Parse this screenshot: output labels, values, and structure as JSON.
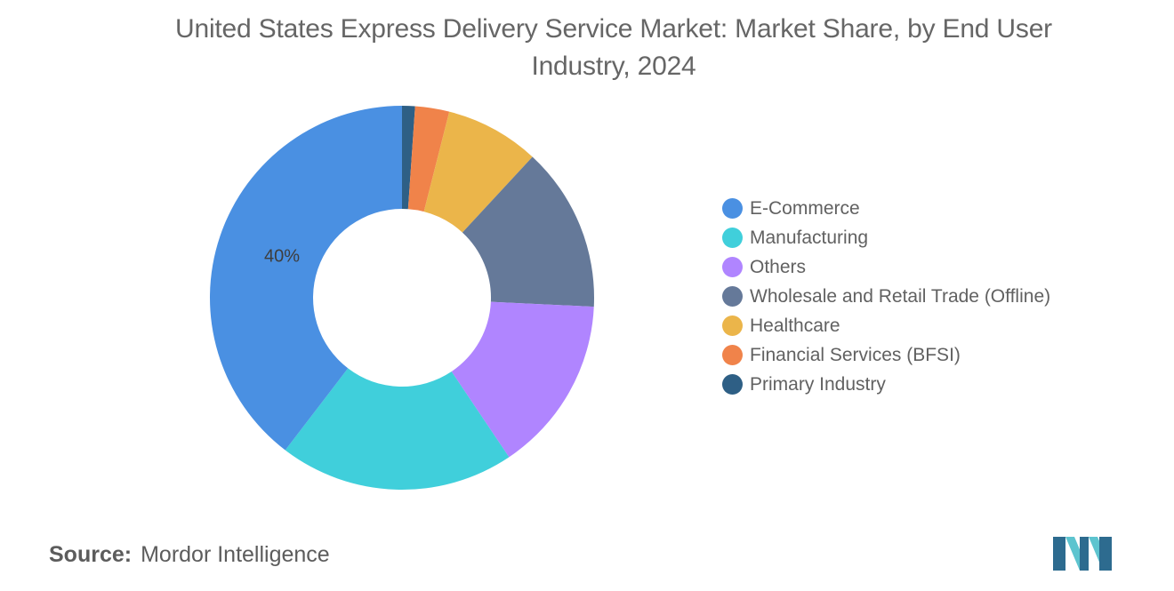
{
  "chart_data": {
    "type": "pie",
    "title": "United States Express Delivery Service Market: Market Share, by End User Industry, 2024",
    "donut": true,
    "legend_position": "right",
    "categories": [
      "E-Commerce",
      "Manufacturing",
      "Others",
      "Wholesale and Retail Trade (Offline)",
      "Healthcare",
      "Financial Services (BFSI)",
      "Primary Industry"
    ],
    "values": [
      40,
      20,
      15,
      14,
      8,
      2.9,
      1.1
    ],
    "colors": [
      "#4a90e2",
      "#40cfdb",
      "#b085ff",
      "#657999",
      "#ebb54a",
      "#f0834a",
      "#2e5f85"
    ],
    "data_labels": [
      "40%",
      "",
      "",
      "",
      "",
      "",
      ""
    ],
    "draw_order": [
      6,
      5,
      4,
      3,
      2,
      1,
      0
    ]
  },
  "source": {
    "label": "Source:",
    "text": "Mordor Intelligence"
  },
  "logo": {
    "icon": "mordor-intelligence-logo-icon",
    "colors": [
      "#2d6b8f",
      "#5dc4cf"
    ]
  }
}
